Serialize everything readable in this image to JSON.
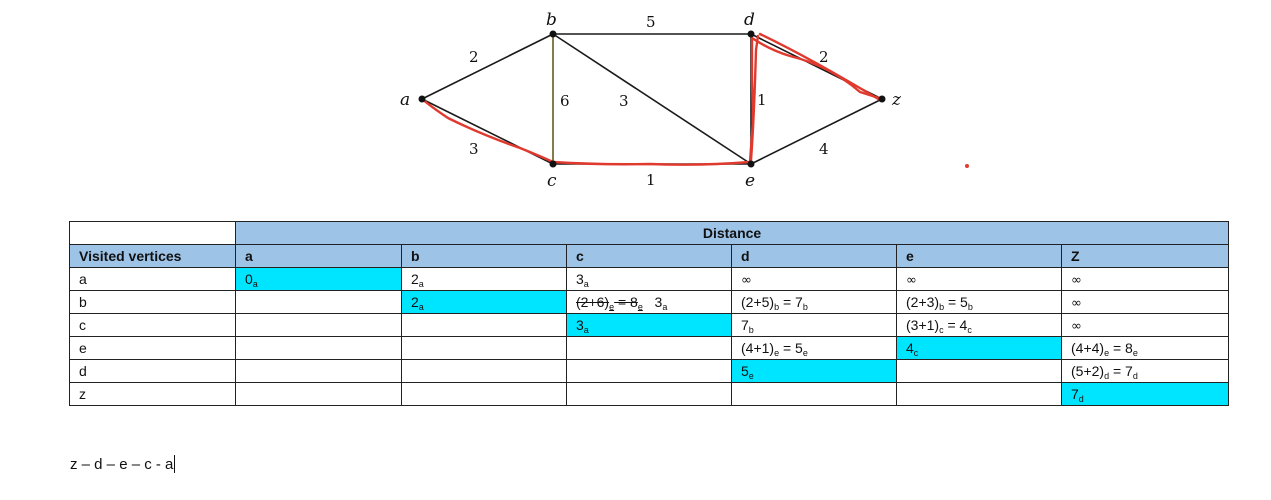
{
  "graph": {
    "vertices": [
      {
        "id": "a",
        "label": "a"
      },
      {
        "id": "b",
        "label": "b"
      },
      {
        "id": "c",
        "label": "c"
      },
      {
        "id": "d",
        "label": "d"
      },
      {
        "id": "e",
        "label": "e"
      },
      {
        "id": "z",
        "label": "z"
      }
    ],
    "edges": [
      {
        "from": "a",
        "to": "b",
        "weight": "2",
        "highlighted": false
      },
      {
        "from": "a",
        "to": "c",
        "weight": "3",
        "highlighted": true
      },
      {
        "from": "b",
        "to": "d",
        "weight": "5",
        "highlighted": false
      },
      {
        "from": "b",
        "to": "c",
        "weight": "6",
        "highlighted": false
      },
      {
        "from": "b",
        "to": "e",
        "weight": "3",
        "highlighted": false
      },
      {
        "from": "c",
        "to": "e",
        "weight": "1",
        "highlighted": true
      },
      {
        "from": "d",
        "to": "e",
        "weight": "1",
        "highlighted": true
      },
      {
        "from": "d",
        "to": "z",
        "weight": "2",
        "highlighted": true
      },
      {
        "from": "e",
        "to": "z",
        "weight": "4",
        "highlighted": false
      }
    ],
    "highlight_color": "#e03a2e"
  },
  "table": {
    "distance_header": "Distance",
    "visited_header": "Visited vertices",
    "columns": [
      "a",
      "b",
      "c",
      "d",
      "e",
      "Z"
    ],
    "rows": [
      {
        "visited": "a"
      },
      {
        "visited": "b"
      },
      {
        "visited": "c"
      },
      {
        "visited": "e"
      },
      {
        "visited": "d"
      },
      {
        "visited": "z"
      }
    ],
    "highlight_color": "#00e5ff"
  },
  "path_text": "z – d – e – c - a"
}
